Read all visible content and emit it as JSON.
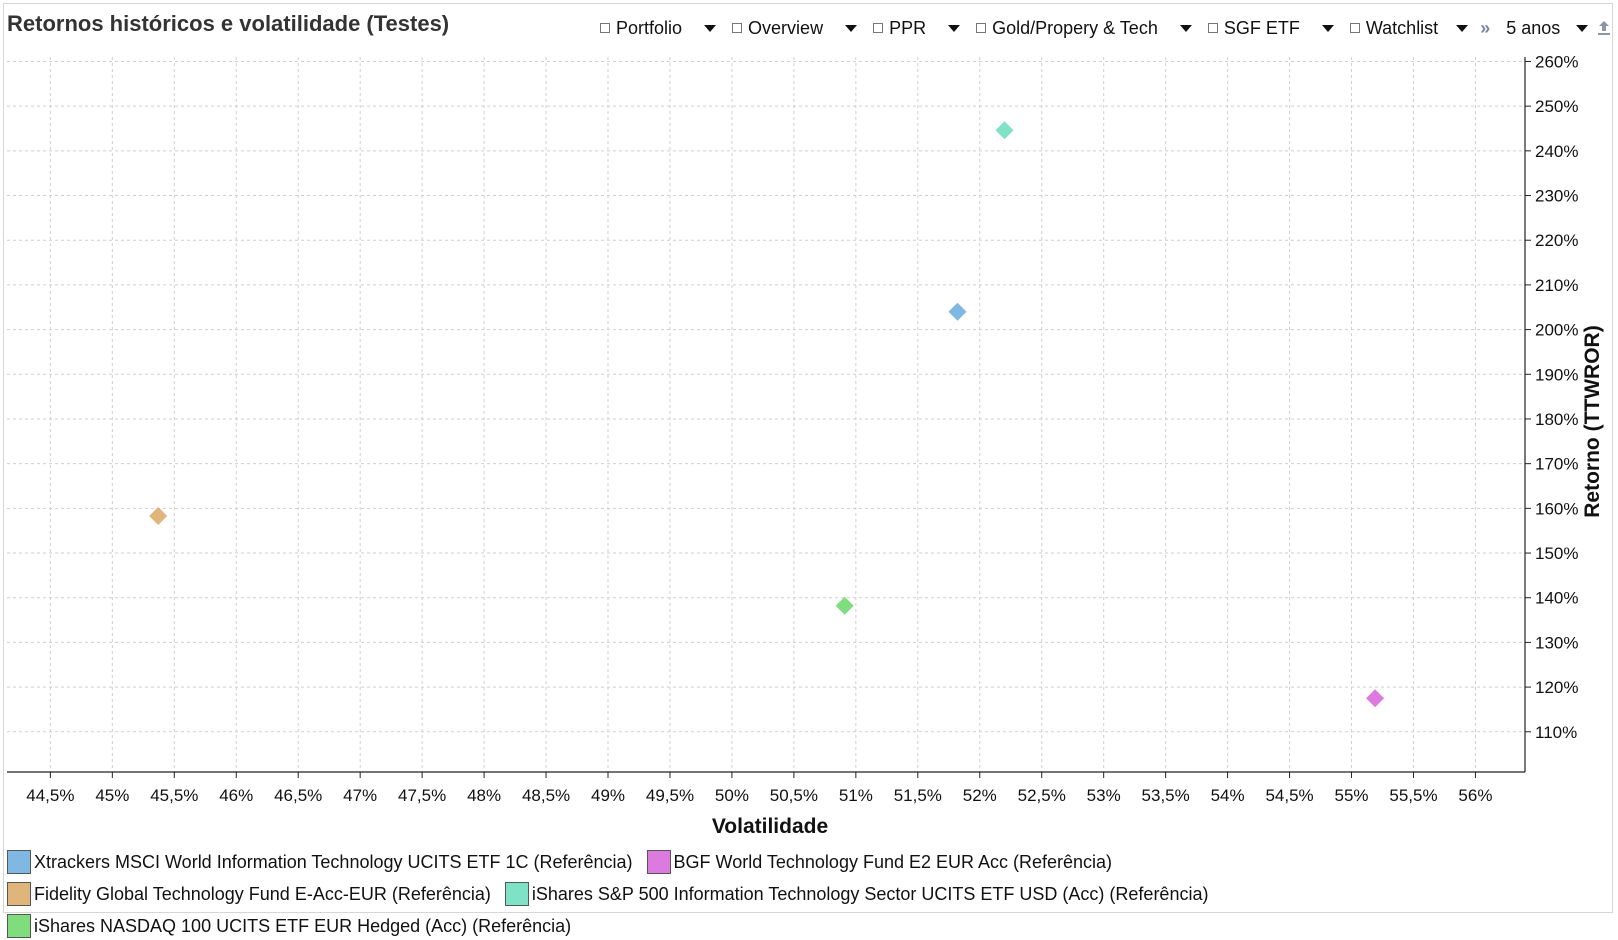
{
  "header": {
    "title": "Retornos históricos e volatilidade (Testes)"
  },
  "toolbar": {
    "tabs": [
      {
        "label": "Portfolio"
      },
      {
        "label": "Overview"
      },
      {
        "label": "PPR"
      },
      {
        "label": "Gold/Propery & Tech"
      },
      {
        "label": "SGF ETF"
      },
      {
        "label": "Watchlist"
      }
    ],
    "more_glyph": "»",
    "period": "5 anos",
    "icons": [
      "export-icon",
      "gear-icon"
    ]
  },
  "chart_data": {
    "type": "scatter",
    "xlabel": "Volatilidade",
    "ylabel": "Retorno (TTWROR)",
    "xlim": [
      44.15,
      56.4
    ],
    "ylim": [
      101,
      261
    ],
    "x_ticks": [
      44.5,
      45,
      45.5,
      46,
      46.5,
      47,
      47.5,
      48,
      48.5,
      49,
      49.5,
      50,
      50.5,
      51,
      51.5,
      52,
      52.5,
      53,
      53.5,
      54,
      54.5,
      55,
      55.5,
      56
    ],
    "x_tick_labels": [
      "44,5%",
      "45%",
      "45,5%",
      "46%",
      "46,5%",
      "47%",
      "47,5%",
      "48%",
      "48,5%",
      "49%",
      "49,5%",
      "50%",
      "50,5%",
      "51%",
      "51,5%",
      "52%",
      "52,5%",
      "53%",
      "53,5%",
      "54%",
      "54,5%",
      "55%",
      "55,5%",
      "56%"
    ],
    "y_ticks": [
      110,
      120,
      130,
      140,
      150,
      160,
      170,
      180,
      190,
      200,
      210,
      220,
      230,
      240,
      250,
      260
    ],
    "y_tick_labels": [
      "110%",
      "120%",
      "130%",
      "140%",
      "150%",
      "160%",
      "170%",
      "180%",
      "190%",
      "200%",
      "210%",
      "220%",
      "230%",
      "240%",
      "250%",
      "260%"
    ],
    "grid": true,
    "legend_position": "bottom",
    "series": [
      {
        "name": "Xtrackers MSCI World Information Technology UCITS ETF 1C (Referência)",
        "color": "#7fb8e2",
        "x": 51.82,
        "y": 204.0
      },
      {
        "name": "BGF World Technology Fund E2 EUR Acc (Referência)",
        "color": "#dd7ae0",
        "x": 55.19,
        "y": 117.5
      },
      {
        "name": "Fidelity Global Technology Fund E-Acc-EUR (Referência)",
        "color": "#dfb57c",
        "x": 45.37,
        "y": 158.3
      },
      {
        "name": "iShares S&P 500 Information Technology Sector UCITS ETF USD (Acc) (Referência)",
        "color": "#7fe1c6",
        "x": 52.2,
        "y": 244.6
      },
      {
        "name": "iShares NASDAQ 100 UCITS ETF EUR Hedged (Acc) (Referência)",
        "color": "#7fdd7d",
        "x": 50.91,
        "y": 138.2
      }
    ]
  }
}
